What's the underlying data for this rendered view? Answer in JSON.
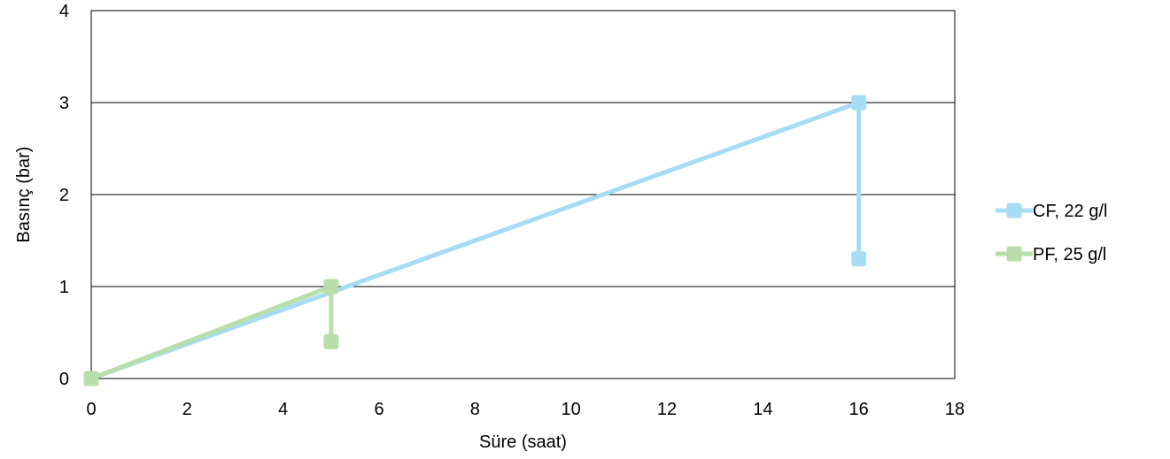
{
  "chart_data": {
    "type": "line",
    "title": "",
    "xlabel": "Süre (saat)",
    "ylabel": "Basınç (bar)",
    "xlim": [
      0,
      18
    ],
    "ylim": [
      0,
      4
    ],
    "xticks": [
      "0",
      "2",
      "4",
      "6",
      "8",
      "10",
      "12",
      "14",
      "16",
      "18"
    ],
    "yticks": [
      "0",
      "1",
      "2",
      "3",
      "4"
    ],
    "grid": "horizontal",
    "legend_position": "right",
    "series": [
      {
        "name": "CF, 22 g/l",
        "color": "#a6dcf4",
        "marker": "square",
        "points": [
          {
            "x": 0,
            "y": 0
          },
          {
            "x": 16,
            "y": 3
          },
          {
            "x": 16,
            "y": 1.3
          }
        ]
      },
      {
        "name": "PF, 25 g/l",
        "color": "#b8dfaa",
        "marker": "square",
        "points": [
          {
            "x": 0,
            "y": 0
          },
          {
            "x": 5,
            "y": 1
          },
          {
            "x": 5,
            "y": 0.4
          }
        ]
      }
    ]
  }
}
